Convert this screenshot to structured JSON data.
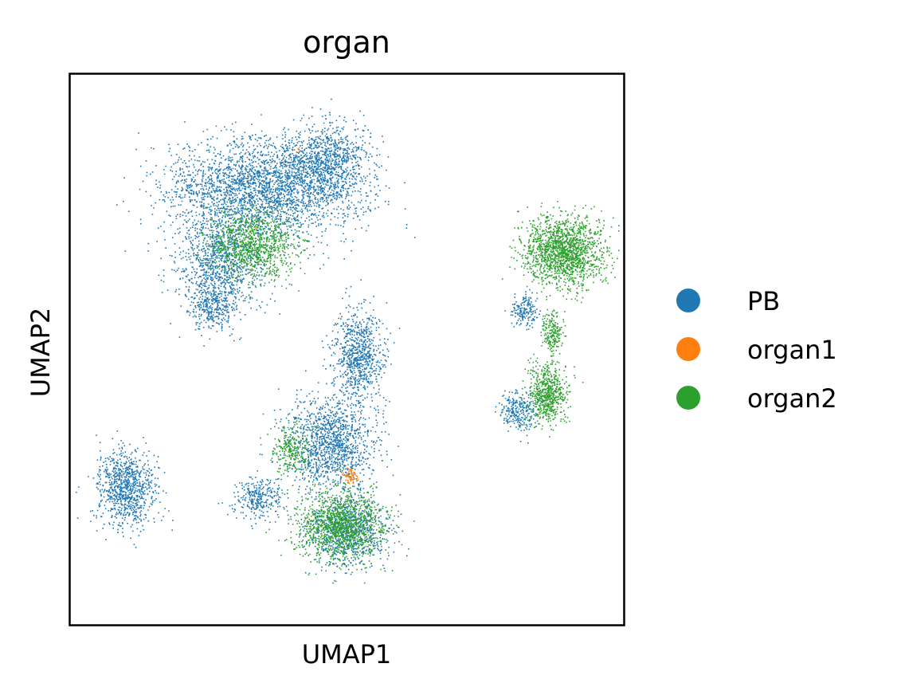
{
  "chart_data": {
    "type": "scatter",
    "title": "organ",
    "xlabel": "UMAP1",
    "ylabel": "UMAP2",
    "xlim": [
      0,
      100
    ],
    "ylim": [
      0,
      100
    ],
    "ticks_shown": false,
    "grid": false,
    "legend_position": "right",
    "legend": [
      {
        "label": "PB",
        "color": "#1f77b4"
      },
      {
        "label": "organ1",
        "color": "#ff7f0e"
      },
      {
        "label": "organ2",
        "color": "#2ca02c"
      }
    ],
    "series": [
      {
        "name": "PB",
        "color": "#1f77b4",
        "clusters": [
          {
            "cx": 34,
            "cy": 79,
            "rx": 19,
            "ry": 10,
            "n": 2600
          },
          {
            "cx": 46,
            "cy": 84,
            "rx": 9,
            "ry": 8,
            "n": 1000
          },
          {
            "cx": 27,
            "cy": 66,
            "rx": 9,
            "ry": 9,
            "n": 900
          },
          {
            "cx": 26,
            "cy": 58,
            "rx": 5,
            "ry": 5,
            "n": 350
          },
          {
            "cx": 52,
            "cy": 49,
            "rx": 5,
            "ry": 9,
            "n": 800
          },
          {
            "cx": 47,
            "cy": 33,
            "rx": 9,
            "ry": 9,
            "n": 1300
          },
          {
            "cx": 50,
            "cy": 17,
            "rx": 8,
            "ry": 7,
            "n": 800
          },
          {
            "cx": 10,
            "cy": 25,
            "rx": 6,
            "ry": 8,
            "n": 900
          },
          {
            "cx": 34,
            "cy": 23,
            "rx": 5,
            "ry": 4,
            "n": 300
          },
          {
            "cx": 82,
            "cy": 57,
            "rx": 3,
            "ry": 3,
            "n": 180
          },
          {
            "cx": 81,
            "cy": 39,
            "rx": 4,
            "ry": 4,
            "n": 260
          }
        ]
      },
      {
        "name": "organ1",
        "color": "#ff7f0e",
        "clusters": [
          {
            "cx": 50.5,
            "cy": 27,
            "rx": 1.6,
            "ry": 1.6,
            "n": 70
          },
          {
            "cx": 33,
            "cy": 72,
            "rx": 1,
            "ry": 1,
            "n": 6
          },
          {
            "cx": 41,
            "cy": 86,
            "rx": 1,
            "ry": 1,
            "n": 4
          },
          {
            "cx": 9,
            "cy": 27,
            "rx": 1,
            "ry": 1,
            "n": 3
          }
        ]
      },
      {
        "name": "organ2",
        "color": "#2ca02c",
        "clusters": [
          {
            "cx": 33,
            "cy": 69,
            "rx": 9,
            "ry": 7,
            "n": 1000
          },
          {
            "cx": 49,
            "cy": 18,
            "rx": 9,
            "ry": 7,
            "n": 1300
          },
          {
            "cx": 40,
            "cy": 32,
            "rx": 4,
            "ry": 5,
            "n": 250
          },
          {
            "cx": 89,
            "cy": 68,
            "rx": 8,
            "ry": 7,
            "n": 1600
          },
          {
            "cx": 86,
            "cy": 42,
            "rx": 4,
            "ry": 6,
            "n": 650
          },
          {
            "cx": 87,
            "cy": 53,
            "rx": 2,
            "ry": 4,
            "n": 200
          }
        ]
      }
    ]
  }
}
